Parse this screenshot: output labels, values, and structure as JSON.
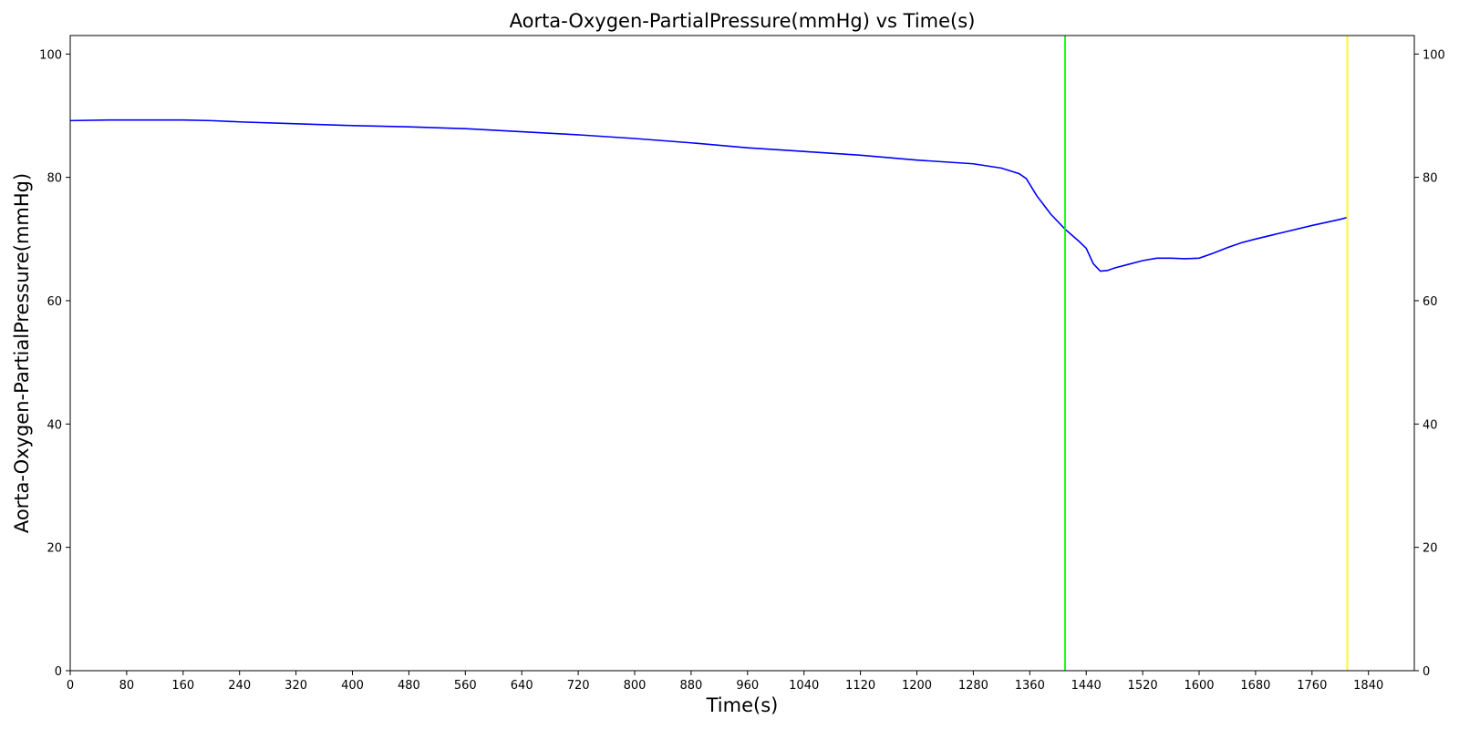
{
  "chart_data": {
    "type": "line",
    "title": "Aorta-Oxygen-PartialPressure(mmHg) vs Time(s)",
    "xlabel": "Time(s)",
    "ylabel": "Aorta-Oxygen-PartialPressure(mmHg)",
    "xlim": [
      0,
      1905
    ],
    "ylim": [
      0,
      103
    ],
    "x_ticks": [
      0,
      80,
      160,
      240,
      320,
      400,
      480,
      560,
      640,
      720,
      800,
      880,
      960,
      1040,
      1120,
      1200,
      1280,
      1360,
      1440,
      1520,
      1600,
      1680,
      1760,
      1840
    ],
    "y_ticks": [
      0,
      20,
      40,
      60,
      80,
      100
    ],
    "right_y_ticks": [
      0,
      20,
      40,
      60,
      80,
      100
    ],
    "grid": false,
    "series": [
      {
        "color": "#0000ff",
        "points": [
          [
            0,
            89.2
          ],
          [
            55,
            89.3
          ],
          [
            160,
            89.3
          ],
          [
            200,
            89.2
          ],
          [
            240,
            89.0
          ],
          [
            320,
            88.7
          ],
          [
            400,
            88.4
          ],
          [
            480,
            88.2
          ],
          [
            560,
            87.9
          ],
          [
            640,
            87.4
          ],
          [
            720,
            86.9
          ],
          [
            800,
            86.3
          ],
          [
            880,
            85.6
          ],
          [
            960,
            84.8
          ],
          [
            1040,
            84.2
          ],
          [
            1120,
            83.6
          ],
          [
            1200,
            82.8
          ],
          [
            1280,
            82.2
          ],
          [
            1320,
            81.5
          ],
          [
            1345,
            80.6
          ],
          [
            1355,
            79.8
          ],
          [
            1370,
            77.0
          ],
          [
            1390,
            74.0
          ],
          [
            1410,
            71.6
          ],
          [
            1430,
            69.6
          ],
          [
            1440,
            68.5
          ],
          [
            1450,
            66.0
          ],
          [
            1460,
            64.8
          ],
          [
            1470,
            64.9
          ],
          [
            1480,
            65.3
          ],
          [
            1500,
            65.9
          ],
          [
            1520,
            66.5
          ],
          [
            1540,
            66.9
          ],
          [
            1560,
            66.9
          ],
          [
            1580,
            66.8
          ],
          [
            1600,
            66.9
          ],
          [
            1620,
            67.7
          ],
          [
            1640,
            68.6
          ],
          [
            1660,
            69.4
          ],
          [
            1680,
            70.0
          ],
          [
            1720,
            71.1
          ],
          [
            1760,
            72.2
          ],
          [
            1800,
            73.2
          ],
          [
            1810,
            73.5
          ]
        ]
      }
    ],
    "vertical_lines": [
      {
        "x": 1410,
        "color": "#00ff00"
      },
      {
        "x": 1810,
        "color": "#ffff00"
      }
    ]
  }
}
